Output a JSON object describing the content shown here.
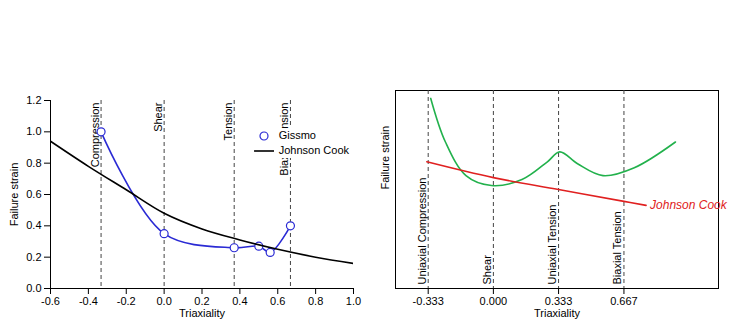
{
  "chart_data": [
    {
      "type": "line",
      "x_label": "Triaxiality",
      "y_label": "Failure strain",
      "xlim": [
        -0.6,
        1.0
      ],
      "xticks": [
        {
          "value": -0.6,
          "label": "-0.6"
        },
        {
          "value": -0.4,
          "label": "-0.4"
        },
        {
          "value": -0.2,
          "label": "-0.2"
        },
        {
          "value": 0,
          "label": "0.0"
        },
        {
          "value": 0.2,
          "label": "0.2"
        },
        {
          "value": 0.4,
          "label": "0.4"
        },
        {
          "value": 0.6,
          "label": "0.6"
        },
        {
          "value": 0.8,
          "label": "0.8"
        },
        {
          "value": 1.0,
          "label": "1.0"
        }
      ],
      "ylim": [
        0,
        1.2
      ],
      "yticks": [
        {
          "value": 0,
          "label": "0.0"
        },
        {
          "value": 0.2,
          "label": "0.2"
        },
        {
          "value": 0.4,
          "label": "0.4"
        },
        {
          "value": 0.6,
          "label": "0.6"
        },
        {
          "value": 0.8,
          "label": "0.8"
        },
        {
          "value": 1.0,
          "label": "1.0"
        },
        {
          "value": 1.2,
          "label": "1.2"
        }
      ],
      "legend": "upper right",
      "series": [
        {
          "name": "Gissmo",
          "color": "#2a2ad4",
          "marker": "circle",
          "line_style": "solid",
          "x": [
            -0.333,
            0,
            0.37,
            0.5,
            0.56,
            0.667
          ],
          "values": [
            1.0,
            0.35,
            0.26,
            0.27,
            0.23,
            0.4
          ]
        },
        {
          "name": "Johnson Cook",
          "color": "#000000",
          "line_style": "solid",
          "x": [
            -0.6,
            -0.4,
            -0.2,
            0,
            0.2,
            0.4,
            0.6,
            0.8,
            1.0
          ],
          "values": [
            0.94,
            0.78,
            0.63,
            0.48,
            0.38,
            0.31,
            0.25,
            0.2,
            0.16
          ]
        }
      ],
      "annotations": [
        {
          "x": -0.333,
          "text": "Compression"
        },
        {
          "x": 0,
          "text": "Shear"
        },
        {
          "x": 0.37,
          "text": "Tension"
        },
        {
          "x": 0.667,
          "text": "Biaxial Tension"
        }
      ]
    },
    {
      "type": "line",
      "x_label": "Triaxiality",
      "y_label": "Failure strain",
      "xlim": [
        -0.5,
        1.15
      ],
      "xticks": [
        {
          "value": -0.333,
          "label": "-0.333"
        },
        {
          "value": 0,
          "label": "0.000"
        },
        {
          "value": 0.333,
          "label": "0.333"
        },
        {
          "value": 0.667,
          "label": "0.667"
        }
      ],
      "ylim": [
        0,
        1
      ],
      "yticks": [],
      "tick_labels": "x",
      "series": [
        {
          "color": "#22b14c",
          "line_style": "solid",
          "x": [
            -0.32,
            -0.245,
            -0.14,
            -0.01,
            0.146,
            0.276,
            0.339,
            0.43,
            0.56,
            0.72,
            0.93
          ],
          "values": [
            0.96,
            0.74,
            0.57,
            0.52,
            0.55,
            0.64,
            0.69,
            0.63,
            0.57,
            0.61,
            0.74
          ]
        },
        {
          "name": "Johnson Cook",
          "color": "#e02020",
          "line_style": "solid",
          "x": [
            -0.34,
            0,
            0.333,
            0.667,
            0.78
          ],
          "values": [
            0.64,
            0.56,
            0.5,
            0.44,
            0.42
          ]
        }
      ],
      "annotations": [
        {
          "x": -0.333,
          "text": "Uniaxial Compression"
        },
        {
          "x": 0,
          "text": "Shear"
        },
        {
          "x": 0.333,
          "text": "Uniaxial Tension"
        },
        {
          "x": 0.667,
          "text": "Biaxial Tension"
        }
      ]
    }
  ]
}
